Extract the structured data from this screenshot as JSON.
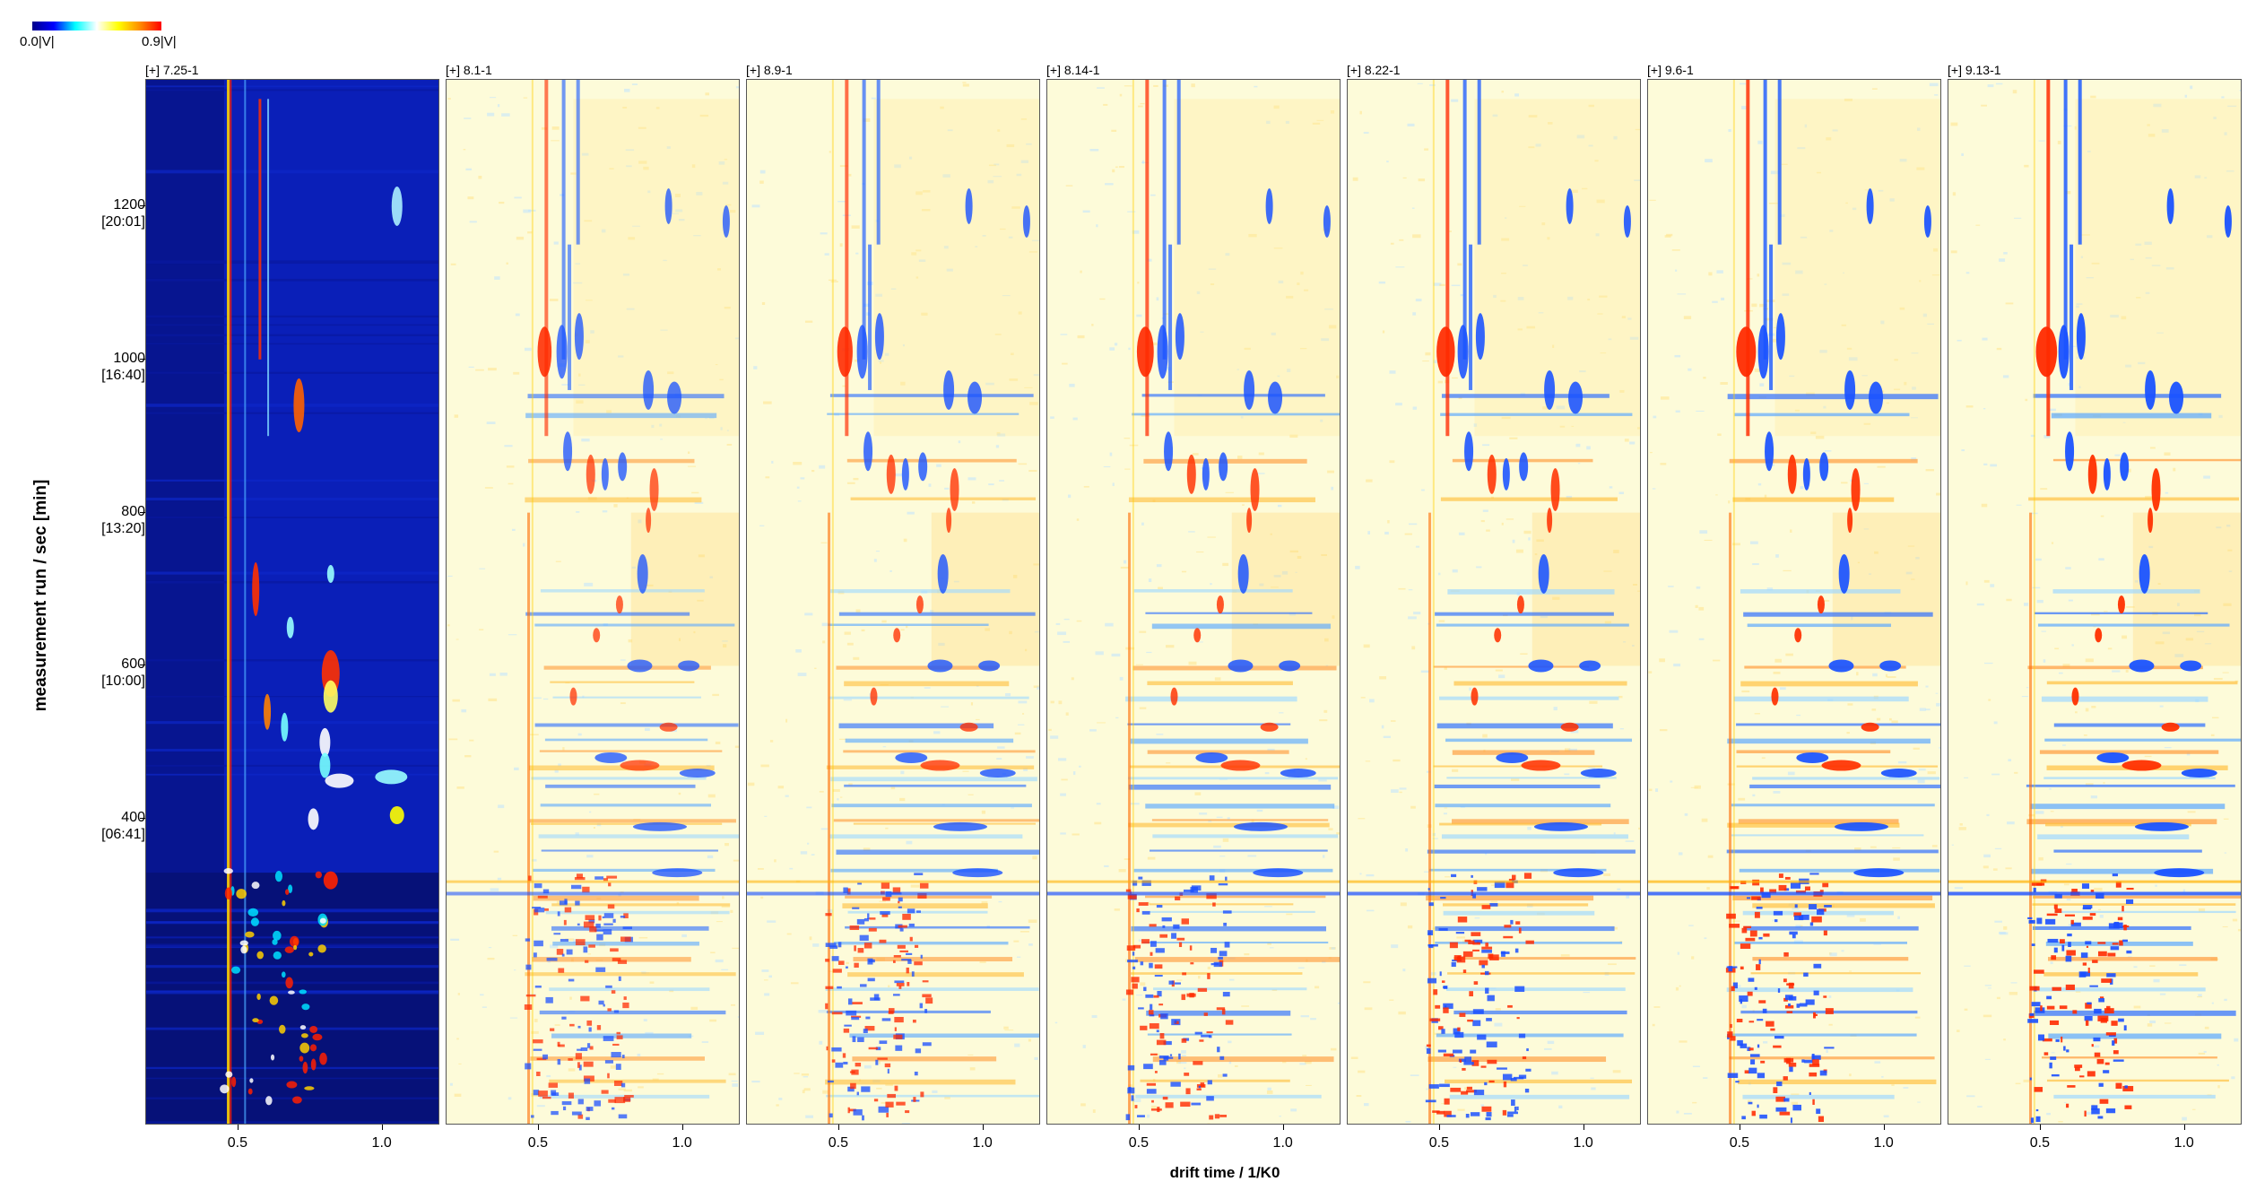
{
  "colorbar": {
    "min_label": "0.0|V|",
    "max_label": "0.9|V|",
    "colors": [
      "#00008b",
      "#0000ff",
      "#00ffff",
      "#ffffff",
      "#ffff00",
      "#ff8c00",
      "#ff0000"
    ]
  },
  "chart_data": {
    "type": "heatmap",
    "title": "",
    "xlabel": "drift time / 1/K0",
    "ylabel": "measurement run / sec [min]",
    "xlim": [
      0.18,
      1.2
    ],
    "ylim": [
      0,
      1365
    ],
    "x_ticks": [
      "0.5",
      "1.0"
    ],
    "y_ticks": [
      {
        "value": 1200,
        "label": "1200",
        "sub": "[20:01]"
      },
      {
        "value": 1000,
        "label": "1000",
        "sub": "[16:40]"
      },
      {
        "value": 800,
        "label": "800",
        "sub": "[13:20]"
      },
      {
        "value": 600,
        "label": "600",
        "sub": "[10:00]"
      },
      {
        "value": 400,
        "label": "400",
        "sub": "[06:41]"
      }
    ],
    "panels": [
      {
        "label": "[+] 7.25-1",
        "mode": "reference"
      },
      {
        "label": "[+] 8.1-1",
        "mode": "difference"
      },
      {
        "label": "[+] 8.9-1",
        "mode": "difference"
      },
      {
        "label": "[+] 8.14-1",
        "mode": "difference"
      },
      {
        "label": "[+] 8.22-1",
        "mode": "difference"
      },
      {
        "label": "[+] 9.6-1",
        "mode": "difference"
      },
      {
        "label": "[+] 9.13-1",
        "mode": "difference"
      }
    ]
  }
}
